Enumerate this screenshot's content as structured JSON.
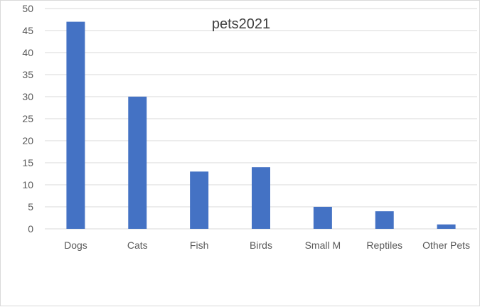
{
  "chart_data": {
    "type": "bar",
    "title": "pets2021",
    "categories": [
      "Dogs",
      "Cats",
      "Fish",
      "Birds",
      "Small M",
      "Reptiles",
      "Other Pets"
    ],
    "values": [
      47,
      30,
      13,
      14,
      5,
      4,
      1
    ],
    "ylim": [
      0,
      50
    ],
    "yticks": [
      "0",
      "5",
      "10",
      "15",
      "20",
      "25",
      "30",
      "35",
      "40",
      "45",
      "50"
    ],
    "grid": true,
    "legend": "none",
    "bar_color": "#4472c4",
    "grid_color": "#d9d9d9"
  }
}
